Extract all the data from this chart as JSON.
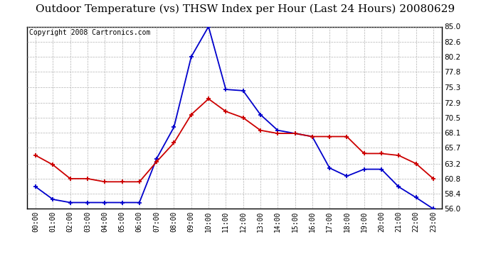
{
  "title": "Outdoor Temperature (vs) THSW Index per Hour (Last 24 Hours) 20080629",
  "copyright": "Copyright 2008 Cartronics.com",
  "hours": [
    "00:00",
    "01:00",
    "02:00",
    "03:00",
    "04:00",
    "05:00",
    "06:00",
    "07:00",
    "08:00",
    "09:00",
    "10:00",
    "11:00",
    "12:00",
    "13:00",
    "14:00",
    "15:00",
    "16:00",
    "17:00",
    "18:00",
    "19:00",
    "20:00",
    "21:00",
    "22:00",
    "23:00"
  ],
  "temp_red": [
    64.5,
    63.0,
    60.8,
    60.8,
    60.3,
    60.3,
    60.3,
    63.5,
    66.5,
    71.0,
    73.5,
    71.5,
    70.5,
    68.5,
    68.0,
    68.0,
    67.5,
    67.5,
    67.5,
    64.8,
    64.8,
    64.5,
    63.2,
    60.8
  ],
  "thsw_blue": [
    59.5,
    57.5,
    57.0,
    57.0,
    57.0,
    57.0,
    57.0,
    64.0,
    69.0,
    80.2,
    85.0,
    75.0,
    74.8,
    71.0,
    68.5,
    68.0,
    67.5,
    62.5,
    61.2,
    62.3,
    62.3,
    59.5,
    57.8,
    56.0
  ],
  "ylim_min": 56.0,
  "ylim_max": 85.0,
  "yticks": [
    56.0,
    58.4,
    60.8,
    63.2,
    65.7,
    68.1,
    70.5,
    72.9,
    75.3,
    77.8,
    80.2,
    82.6,
    85.0
  ],
  "red_color": "#cc0000",
  "blue_color": "#0000cc",
  "grid_color": "#aaaaaa",
  "bg_color": "#ffffff",
  "title_fontsize": 11,
  "copyright_fontsize": 7
}
